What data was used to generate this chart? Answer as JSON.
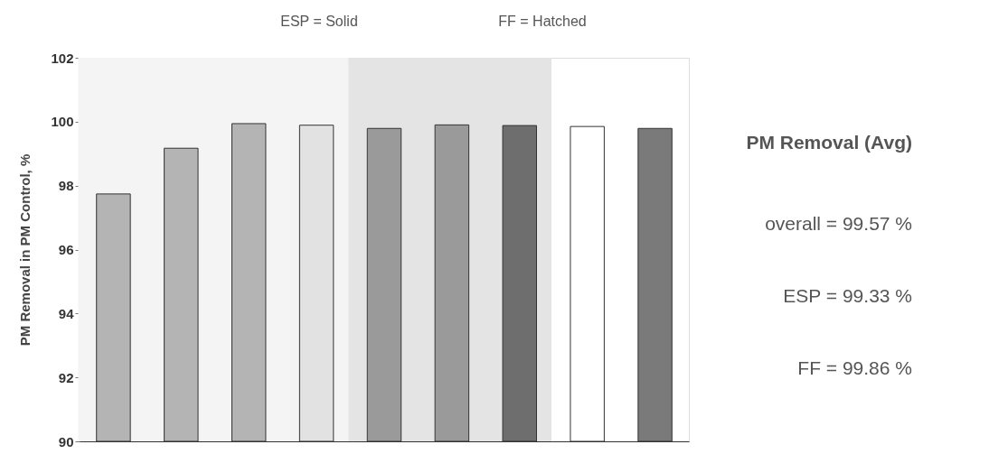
{
  "chart_data": {
    "type": "bar",
    "ylabel": "PM Removal in PM Control, %",
    "categories": [
      null,
      null,
      null,
      null,
      null,
      null,
      null,
      null,
      null
    ],
    "values": [
      97.74,
      99.17,
      99.94,
      99.89,
      99.79,
      99.9,
      99.88,
      99.85,
      99.79
    ],
    "colors": [
      "#b4b4b4",
      "#b4b4b4",
      "#b4b4b4",
      "#e2e2e2",
      "#9a9a9a",
      "#9a9a9a",
      "#6e6e6e",
      "#ffffff",
      "#7a7a7a"
    ],
    "ylim": [
      90,
      102
    ],
    "yticks": [
      90,
      92,
      94,
      96,
      98,
      100,
      102
    ],
    "tick_labels": "y",
    "grid": false,
    "annotations": [
      "ESP = Solid",
      "FF = Hatched",
      "PM Removal (Avg)",
      "overall = 99.57 %",
      "ESP = 99.33 %",
      "FF = 99.86 %"
    ]
  }
}
